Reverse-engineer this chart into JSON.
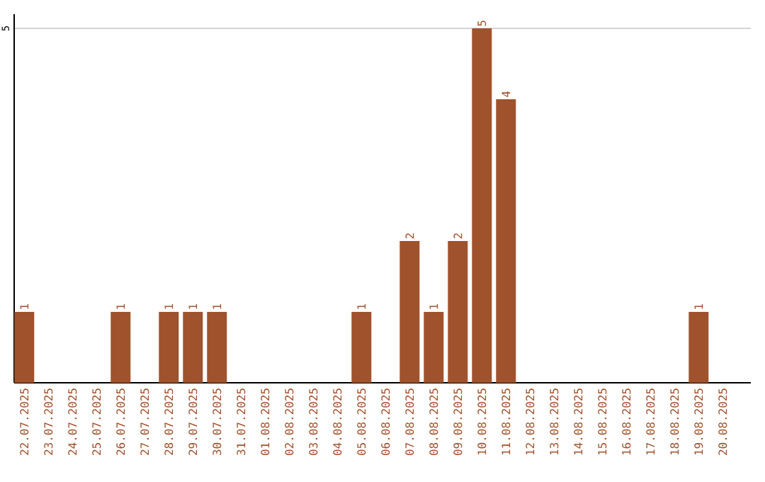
{
  "chart_data": {
    "type": "bar",
    "categories": [
      "22.07.2025",
      "23.07.2025",
      "24.07.2025",
      "25.07.2025",
      "26.07.2025",
      "27.07.2025",
      "28.07.2025",
      "29.07.2025",
      "30.07.2025",
      "31.07.2025",
      "01.08.2025",
      "02.08.2025",
      "03.08.2025",
      "04.08.2025",
      "05.08.2025",
      "06.08.2025",
      "07.08.2025",
      "08.08.2025",
      "09.08.2025",
      "10.08.2025",
      "11.08.2025",
      "12.08.2025",
      "13.08.2025",
      "14.08.2025",
      "15.08.2025",
      "16.08.2025",
      "17.08.2025",
      "18.08.2025",
      "19.08.2025",
      "20.08.2025"
    ],
    "values": [
      1,
      0,
      0,
      0,
      1,
      0,
      1,
      1,
      1,
      0,
      0,
      0,
      0,
      0,
      1,
      0,
      2,
      1,
      2,
      5,
      4,
      0,
      0,
      0,
      0,
      0,
      0,
      0,
      1,
      0
    ],
    "value_labels": [
      "1",
      null,
      null,
      null,
      "1",
      null,
      "1",
      "1",
      "1",
      null,
      null,
      null,
      null,
      null,
      "1",
      null,
      "2",
      "1",
      "2",
      "5",
      "4",
      null,
      null,
      null,
      null,
      null,
      null,
      null,
      "1",
      null
    ],
    "color": "#a0522d",
    "ylim": [
      0,
      5.2
    ],
    "yticks": [
      5
    ],
    "grid": "y"
  }
}
